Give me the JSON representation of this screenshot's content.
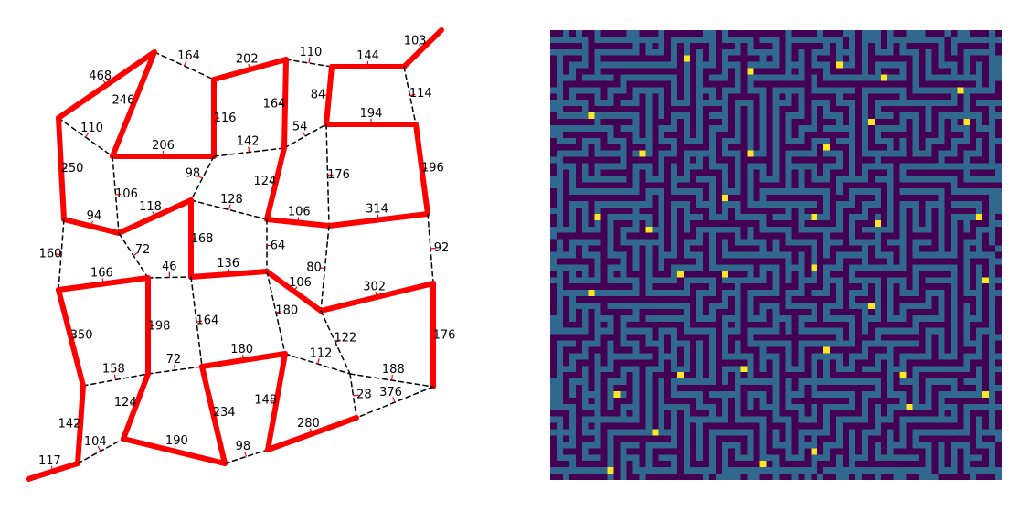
{
  "colors": {
    "background": "#ffffff",
    "solution_edge": "#ff0000",
    "other_edge": "#000000",
    "label_tick": "#ff0000",
    "label_text": "#000000",
    "maze_wall": "#440154",
    "maze_path": "#31688e",
    "maze_marker": "#fde725"
  },
  "graph": {
    "edges": [
      {
        "a": "A",
        "b": "B",
        "w": "468",
        "path": true
      },
      {
        "a": "B",
        "b": "C",
        "w": "164",
        "path": false
      },
      {
        "a": "C",
        "b": "D",
        "w": "202",
        "path": true
      },
      {
        "a": "D",
        "b": "E",
        "w": "110",
        "path": false
      },
      {
        "a": "E",
        "b": "F",
        "w": "144",
        "path": true
      },
      {
        "a": "F",
        "b": "G",
        "w": "103",
        "path": true
      },
      {
        "a": "A",
        "b": "H",
        "w": "110",
        "path": false
      },
      {
        "a": "B",
        "b": "H",
        "w": "246",
        "path": true
      },
      {
        "a": "H",
        "b": "I",
        "w": "206",
        "path": true
      },
      {
        "a": "C",
        "b": "I",
        "w": "116",
        "path": true
      },
      {
        "a": "D",
        "b": "J",
        "w": "164",
        "path": true
      },
      {
        "a": "E",
        "b": "K",
        "w": "84",
        "path": true
      },
      {
        "a": "F",
        "b": "L",
        "w": "114",
        "path": false
      },
      {
        "a": "J",
        "b": "K",
        "w": "54",
        "path": false
      },
      {
        "a": "K",
        "b": "L",
        "w": "194",
        "path": true
      },
      {
        "a": "I",
        "b": "J",
        "w": "142",
        "path": false
      },
      {
        "a": "A",
        "b": "M",
        "w": "250",
        "path": true
      },
      {
        "a": "H",
        "b": "N",
        "w": "106",
        "path": false
      },
      {
        "a": "I",
        "b": "O",
        "w": "98",
        "path": false
      },
      {
        "a": "J",
        "b": "P",
        "w": "124",
        "path": true
      },
      {
        "a": "K",
        "b": "Q",
        "w": "176",
        "path": false
      },
      {
        "a": "L",
        "b": "R",
        "w": "196",
        "path": true
      },
      {
        "a": "M",
        "b": "N",
        "w": "94",
        "path": true
      },
      {
        "a": "N",
        "b": "O",
        "w": "118",
        "path": true
      },
      {
        "a": "O",
        "b": "P",
        "w": "128",
        "path": false
      },
      {
        "a": "P",
        "b": "Q",
        "w": "106",
        "path": true
      },
      {
        "a": "Q",
        "b": "R",
        "w": "314",
        "path": true
      },
      {
        "a": "M",
        "b": "S",
        "w": "160",
        "path": false
      },
      {
        "a": "N",
        "b": "T",
        "w": "72",
        "path": false
      },
      {
        "a": "O",
        "b": "U",
        "w": "168",
        "path": true
      },
      {
        "a": "P",
        "b": "V",
        "w": "64",
        "path": false
      },
      {
        "a": "Q",
        "b": "W",
        "w": "80",
        "path": false
      },
      {
        "a": "R",
        "b": "X",
        "w": "92",
        "path": false
      },
      {
        "a": "S",
        "b": "T",
        "w": "166",
        "path": true
      },
      {
        "a": "T",
        "b": "U",
        "w": "46",
        "path": false
      },
      {
        "a": "U",
        "b": "V",
        "w": "136",
        "path": true
      },
      {
        "a": "V",
        "b": "W",
        "w": "106",
        "path": true
      },
      {
        "a": "W",
        "b": "X",
        "w": "302",
        "path": true
      },
      {
        "a": "S",
        "b": "Y",
        "w": "350",
        "path": true
      },
      {
        "a": "T",
        "b": "Z",
        "w": "198",
        "path": true
      },
      {
        "a": "U",
        "b": "AA",
        "w": "164",
        "path": false
      },
      {
        "a": "V",
        "b": "AB",
        "w": "180",
        "path": false
      },
      {
        "a": "W",
        "b": "AC",
        "w": "122",
        "path": false
      },
      {
        "a": "X",
        "b": "AD",
        "w": "176",
        "path": true
      },
      {
        "a": "Y",
        "b": "Z",
        "w": "158",
        "path": false
      },
      {
        "a": "Z",
        "b": "AA",
        "w": "72",
        "path": false
      },
      {
        "a": "AA",
        "b": "AB",
        "w": "180",
        "path": true
      },
      {
        "a": "AB",
        "b": "AC",
        "w": "112",
        "path": false
      },
      {
        "a": "AC",
        "b": "AD",
        "w": "188",
        "path": false
      },
      {
        "a": "Y",
        "b": "AE",
        "w": "142",
        "path": true
      },
      {
        "a": "Z",
        "b": "AF",
        "w": "124",
        "path": true
      },
      {
        "a": "AA",
        "b": "AG",
        "w": "234",
        "path": true
      },
      {
        "a": "AB",
        "b": "AH",
        "w": "148",
        "path": true
      },
      {
        "a": "AC",
        "b": "AI",
        "w": "28",
        "path": false
      },
      {
        "a": "AD",
        "b": "AI",
        "w": "376",
        "path": false
      },
      {
        "a": "AE",
        "b": "AJ",
        "w": "117",
        "path": true
      },
      {
        "a": "AE",
        "b": "AF",
        "w": "104",
        "path": false
      },
      {
        "a": "AF",
        "b": "AG",
        "w": "190",
        "path": true
      },
      {
        "a": "AG",
        "b": "AH",
        "w": "98",
        "path": false
      },
      {
        "a": "AH",
        "b": "AI",
        "w": "280",
        "path": true
      }
    ]
  },
  "maze": {
    "cells_per_side": 71,
    "seed": 7,
    "markers": [
      [
        4,
        21
      ],
      [
        6,
        31
      ],
      [
        5,
        45
      ],
      [
        7,
        52
      ],
      [
        9,
        64
      ],
      [
        13,
        6
      ],
      [
        14,
        50
      ],
      [
        14,
        65
      ],
      [
        19,
        14
      ],
      [
        19,
        31
      ],
      [
        18,
        43
      ],
      [
        26,
        27
      ],
      [
        29,
        7
      ],
      [
        29,
        41
      ],
      [
        30,
        51
      ],
      [
        29,
        67
      ],
      [
        31,
        15
      ],
      [
        38,
        20
      ],
      [
        38,
        27
      ],
      [
        37,
        41
      ],
      [
        39,
        68
      ],
      [
        41,
        6
      ],
      [
        43,
        50
      ],
      [
        50,
        43
      ],
      [
        53,
        30
      ],
      [
        54,
        20
      ],
      [
        54,
        55
      ],
      [
        57,
        10
      ],
      [
        57,
        68
      ],
      [
        59,
        56
      ],
      [
        63,
        16
      ],
      [
        66,
        41
      ],
      [
        68,
        33
      ],
      [
        69,
        9
      ]
    ]
  }
}
